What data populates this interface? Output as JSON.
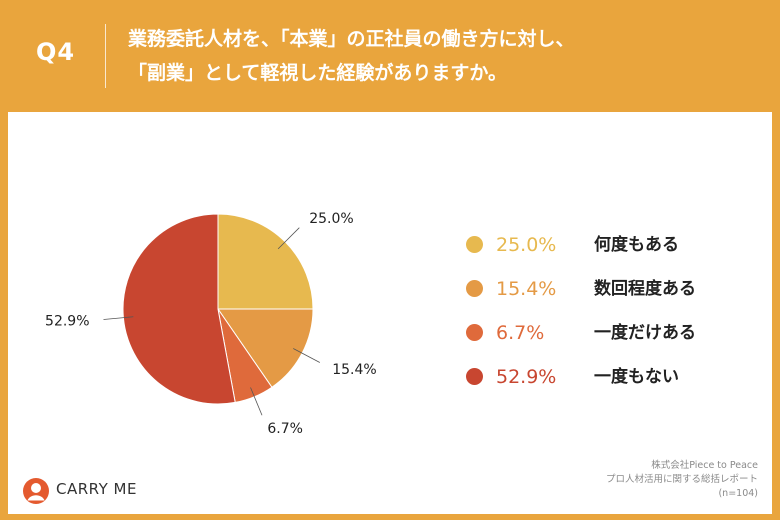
{
  "header": {
    "question_label": "Q4",
    "title_lines": [
      "業務委託人材を、「本業」の正社員の働き方に対し、",
      "「副業」として軽視した経験がありますか。"
    ]
  },
  "chart_data": {
    "type": "pie",
    "start_angle": "12 o'clock",
    "direction": "clockwise",
    "slices": [
      {
        "label": "何度もある",
        "value": 25.0,
        "display": "25.0%",
        "color": "#E7B94F"
      },
      {
        "label": "数回程度ある",
        "value": 15.4,
        "display": "15.4%",
        "color": "#E49A45"
      },
      {
        "label": "一度だけある",
        "value": 6.7,
        "display": "6.7%",
        "color": "#DF6A3B"
      },
      {
        "label": "一度もない",
        "value": 52.9,
        "display": "52.9%",
        "color": "#C84630"
      }
    ],
    "legend_placement": "right"
  },
  "brand": {
    "name": "CARRY ME"
  },
  "source": {
    "lines": [
      "株式会社Piece to Peace",
      "プロ人材活用に関する総括レポート",
      "(n=104)"
    ]
  },
  "colors": {
    "background": "#E9A53D",
    "panel": "#FFFFFF",
    "text": "#222222",
    "muted": "#8A8A8A",
    "logo": "#E45A2F"
  }
}
